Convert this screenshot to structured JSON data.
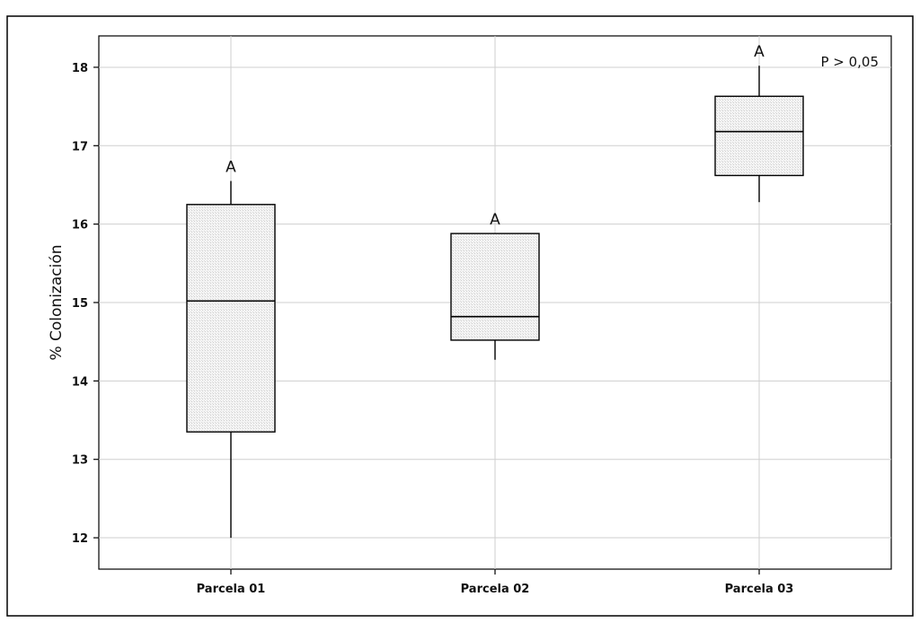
{
  "chart_data": {
    "type": "boxplot",
    "ylabel": "% Colonización",
    "xlabel": "",
    "annotation": "P > 0,05",
    "ylim": [
      11.6,
      18.4
    ],
    "yticks": [
      12,
      13,
      14,
      15,
      16,
      17,
      18
    ],
    "grid": true,
    "categories": [
      "Parcela 01",
      "Parcela 02",
      "Parcela 03"
    ],
    "boxes": [
      {
        "category": "Parcela 01",
        "min": 12.0,
        "q1": 13.35,
        "median": 15.02,
        "q3": 16.25,
        "max": 16.55,
        "letter": "A"
      },
      {
        "category": "Parcela 02",
        "min": 14.27,
        "q1": 14.52,
        "median": 14.82,
        "q3": 15.88,
        "max": 15.88,
        "letter": "A"
      },
      {
        "category": "Parcela 03",
        "min": 16.28,
        "q1": 16.62,
        "median": 17.18,
        "q3": 17.63,
        "max": 18.02,
        "letter": "A"
      }
    ]
  }
}
